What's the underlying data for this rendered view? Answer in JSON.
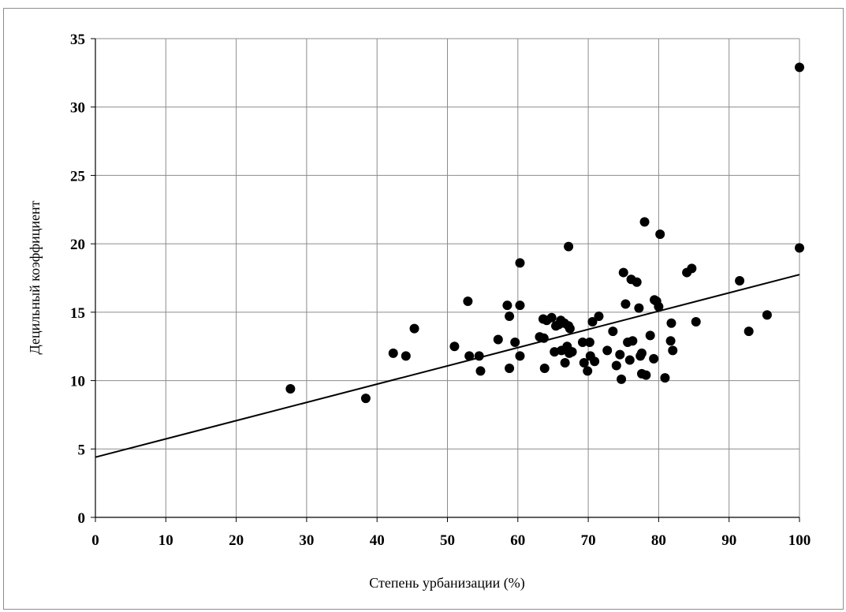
{
  "chart_data": {
    "type": "scatter",
    "xlabel": "Степень урбанизации (%)",
    "ylabel": "Децильный коэффициент",
    "xlim": [
      0,
      100
    ],
    "ylim": [
      0,
      35
    ],
    "x_ticks": [
      "0",
      "10",
      "20",
      "30",
      "40",
      "50",
      "60",
      "70",
      "80",
      "90",
      "100"
    ],
    "y_ticks": [
      "0",
      "5",
      "10",
      "15",
      "20",
      "25",
      "30",
      "35"
    ],
    "grid": true,
    "point_color": "#000000",
    "trendline": {
      "type": "linear",
      "x": [
        0,
        100
      ],
      "y": [
        4.4,
        17.75
      ]
    },
    "points": [
      [
        27.7,
        9.4
      ],
      [
        38.4,
        8.7
      ],
      [
        42.3,
        12.0
      ],
      [
        44.1,
        11.8
      ],
      [
        45.3,
        13.8
      ],
      [
        51.0,
        12.5
      ],
      [
        52.9,
        15.8
      ],
      [
        53.1,
        11.8
      ],
      [
        54.5,
        11.8
      ],
      [
        54.7,
        10.7
      ],
      [
        57.2,
        13.0
      ],
      [
        58.5,
        15.5
      ],
      [
        58.8,
        14.7
      ],
      [
        58.8,
        10.9
      ],
      [
        59.6,
        12.8
      ],
      [
        60.3,
        18.6
      ],
      [
        60.3,
        15.5
      ],
      [
        60.3,
        11.8
      ],
      [
        63.1,
        13.2
      ],
      [
        63.6,
        14.5
      ],
      [
        63.7,
        13.1
      ],
      [
        63.8,
        10.9
      ],
      [
        64.1,
        14.4
      ],
      [
        64.8,
        14.6
      ],
      [
        65.2,
        12.1
      ],
      [
        65.4,
        14.0
      ],
      [
        65.8,
        14.1
      ],
      [
        66.1,
        14.4
      ],
      [
        66.2,
        12.2
      ],
      [
        66.6,
        14.2
      ],
      [
        66.7,
        11.3
      ],
      [
        67.0,
        12.5
      ],
      [
        67.2,
        19.8
      ],
      [
        67.2,
        14.0
      ],
      [
        67.3,
        12.0
      ],
      [
        67.4,
        13.8
      ],
      [
        67.7,
        12.1
      ],
      [
        69.2,
        12.8
      ],
      [
        69.4,
        11.3
      ],
      [
        69.9,
        10.7
      ],
      [
        70.2,
        12.8
      ],
      [
        70.3,
        11.8
      ],
      [
        70.6,
        14.3
      ],
      [
        70.9,
        11.4
      ],
      [
        71.5,
        14.7
      ],
      [
        72.7,
        12.2
      ],
      [
        73.5,
        13.6
      ],
      [
        74.0,
        11.1
      ],
      [
        74.5,
        11.9
      ],
      [
        74.7,
        10.1
      ],
      [
        75.0,
        17.9
      ],
      [
        75.3,
        15.6
      ],
      [
        75.6,
        12.8
      ],
      [
        75.9,
        11.5
      ],
      [
        76.1,
        17.4
      ],
      [
        76.3,
        12.9
      ],
      [
        76.9,
        17.2
      ],
      [
        77.2,
        15.3
      ],
      [
        77.4,
        11.8
      ],
      [
        77.6,
        12.0
      ],
      [
        77.6,
        10.5
      ],
      [
        78.0,
        21.6
      ],
      [
        78.2,
        10.4
      ],
      [
        78.8,
        13.3
      ],
      [
        79.3,
        11.6
      ],
      [
        79.4,
        15.9
      ],
      [
        79.7,
        15.8
      ],
      [
        80.0,
        15.4
      ],
      [
        80.2,
        20.7
      ],
      [
        80.9,
        10.2
      ],
      [
        81.7,
        12.9
      ],
      [
        81.8,
        14.2
      ],
      [
        82.0,
        12.2
      ],
      [
        84.0,
        17.9
      ],
      [
        84.7,
        18.2
      ],
      [
        85.3,
        14.3
      ],
      [
        91.5,
        17.3
      ],
      [
        92.8,
        13.6
      ],
      [
        95.4,
        14.8
      ],
      [
        100.0,
        32.9
      ],
      [
        100.0,
        19.7
      ]
    ]
  }
}
